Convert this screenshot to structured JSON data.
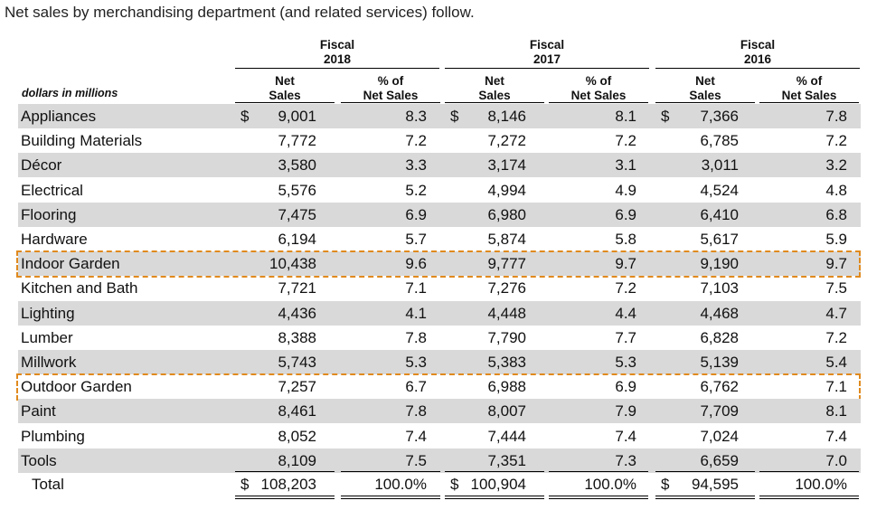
{
  "intro": "Net sales by merchandising department (and related services) follow.",
  "units": "dollars in millions",
  "fiscal": [
    {
      "label": "Fiscal",
      "year": "2018"
    },
    {
      "label": "Fiscal",
      "year": "2017"
    },
    {
      "label": "Fiscal",
      "year": "2016"
    }
  ],
  "col_headers": {
    "net_sales": [
      "Net",
      "Sales"
    ],
    "pct": [
      "% of",
      "Net Sales"
    ]
  },
  "rows": [
    {
      "label": "Appliances",
      "dollar": true,
      "v": [
        "9,001",
        "8.3",
        "8,146",
        "8.1",
        "7,366",
        "7.8"
      ]
    },
    {
      "label": "Building Materials",
      "dollar": false,
      "v": [
        "7,772",
        "7.2",
        "7,272",
        "7.2",
        "6,785",
        "7.2"
      ]
    },
    {
      "label": "Décor",
      "dollar": false,
      "v": [
        "3,580",
        "3.3",
        "3,174",
        "3.1",
        "3,011",
        "3.2"
      ]
    },
    {
      "label": "Electrical",
      "dollar": false,
      "v": [
        "5,576",
        "5.2",
        "4,994",
        "4.9",
        "4,524",
        "4.8"
      ]
    },
    {
      "label": "Flooring",
      "dollar": false,
      "v": [
        "7,475",
        "6.9",
        "6,980",
        "6.9",
        "6,410",
        "6.8"
      ]
    },
    {
      "label": "Hardware",
      "dollar": false,
      "v": [
        "6,194",
        "5.7",
        "5,874",
        "5.8",
        "5,617",
        "5.9"
      ]
    },
    {
      "label": "Indoor Garden",
      "dollar": false,
      "highlight": true,
      "v": [
        "10,438",
        "9.6",
        "9,777",
        "9.7",
        "9,190",
        "9.7"
      ]
    },
    {
      "label": "Kitchen and Bath",
      "dollar": false,
      "v": [
        "7,721",
        "7.1",
        "7,276",
        "7.2",
        "7,103",
        "7.5"
      ]
    },
    {
      "label": "Lighting",
      "dollar": false,
      "v": [
        "4,436",
        "4.1",
        "4,448",
        "4.4",
        "4,468",
        "4.7"
      ]
    },
    {
      "label": "Lumber",
      "dollar": false,
      "v": [
        "8,388",
        "7.8",
        "7,790",
        "7.7",
        "6,828",
        "7.2"
      ]
    },
    {
      "label": "Millwork",
      "dollar": false,
      "v": [
        "5,743",
        "5.3",
        "5,383",
        "5.3",
        "5,139",
        "5.4"
      ]
    },
    {
      "label": "Outdoor Garden",
      "dollar": false,
      "highlight": true,
      "v": [
        "7,257",
        "6.7",
        "6,988",
        "6.9",
        "6,762",
        "7.1"
      ]
    },
    {
      "label": "Paint",
      "dollar": false,
      "v": [
        "8,461",
        "7.8",
        "8,007",
        "7.9",
        "7,709",
        "8.1"
      ]
    },
    {
      "label": "Plumbing",
      "dollar": false,
      "v": [
        "8,052",
        "7.4",
        "7,444",
        "7.4",
        "7,024",
        "7.4"
      ]
    },
    {
      "label": "Tools",
      "dollar": false,
      "v": [
        "8,109",
        "7.5",
        "7,351",
        "7.3",
        "6,659",
        "7.0"
      ]
    }
  ],
  "total": {
    "label": "Total",
    "v": [
      "108,203",
      "100.0%",
      "100,904",
      "100.0%",
      "94,595",
      "100.0%"
    ]
  },
  "dollar_sign": "$",
  "colors": {
    "shade": "#d9d9d9",
    "highlight": "#e08a1e"
  }
}
